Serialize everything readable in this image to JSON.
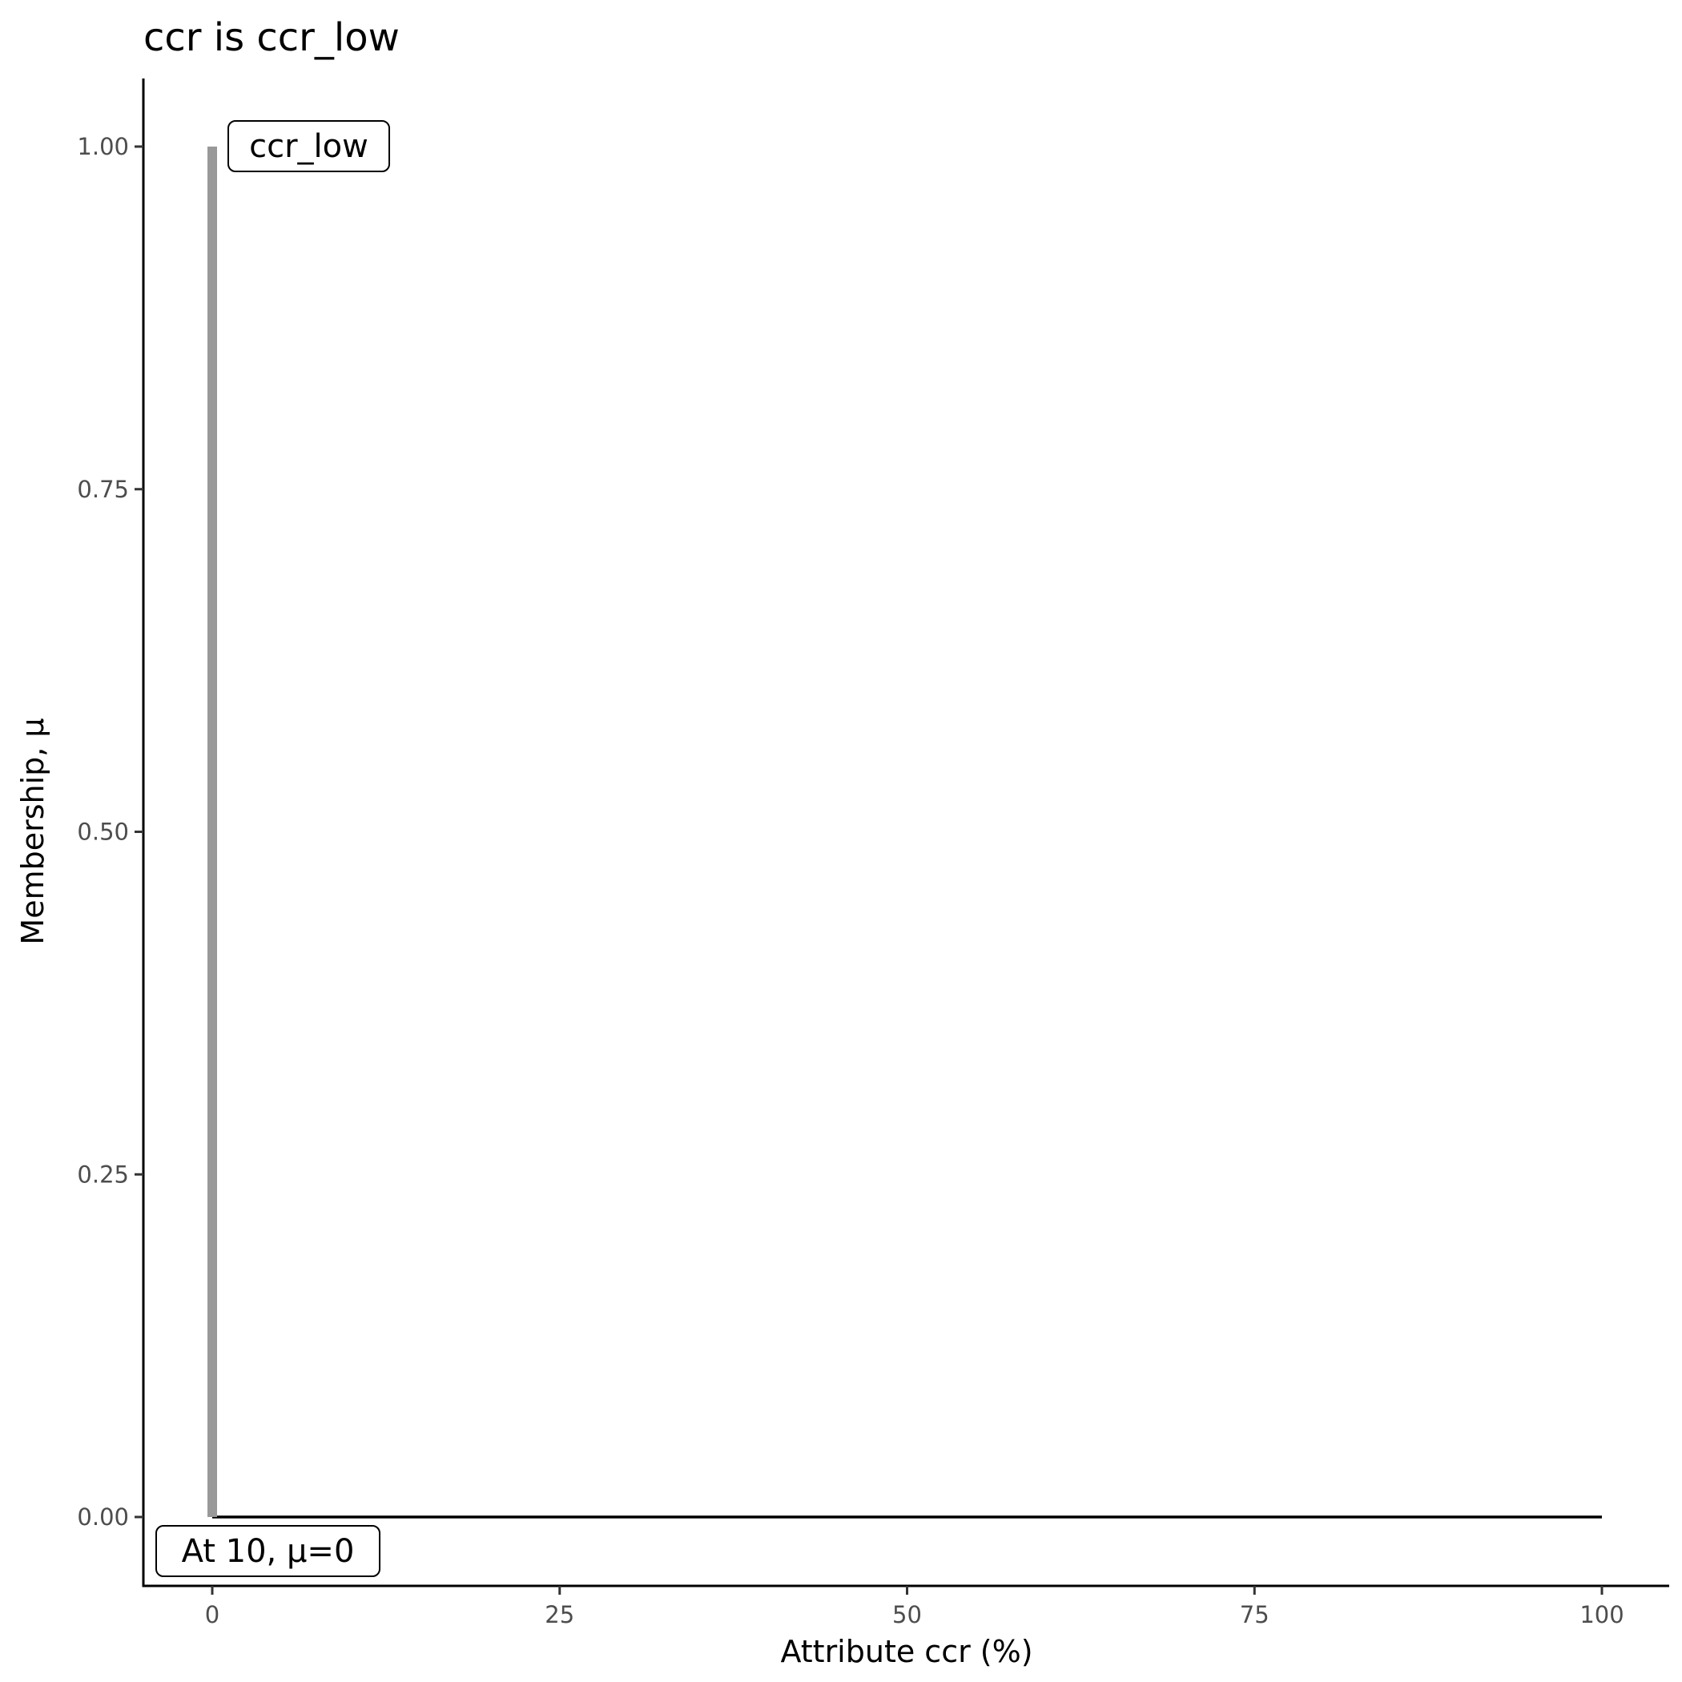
{
  "chart_data": {
    "type": "line",
    "title": "ccr is ccr_low",
    "xlabel": "Attribute ccr (%)",
    "ylabel": "Membership, μ",
    "xlim": [
      -5,
      105
    ],
    "ylim": [
      -0.05,
      1.05
    ],
    "x_ticks": [
      "0",
      "25",
      "50",
      "75",
      "100"
    ],
    "x_tick_values": [
      0,
      25,
      50,
      75,
      100
    ],
    "y_ticks": [
      "0.00",
      "0.25",
      "0.50",
      "0.75",
      "1.00"
    ],
    "y_tick_values": [
      0,
      0.25,
      0.5,
      0.75,
      1
    ],
    "grid": false,
    "series": [
      {
        "color": "#999999",
        "x": [
          0,
          0
        ],
        "y": [
          0,
          1
        ]
      },
      {
        "color": "#000000",
        "x": [
          0,
          100
        ],
        "y": [
          0,
          0
        ]
      }
    ],
    "annotations": [
      {
        "text": "ccr_low",
        "x": 0,
        "y": 1
      },
      {
        "text": "At 10, μ=0",
        "x": 0,
        "y": 0
      }
    ]
  }
}
